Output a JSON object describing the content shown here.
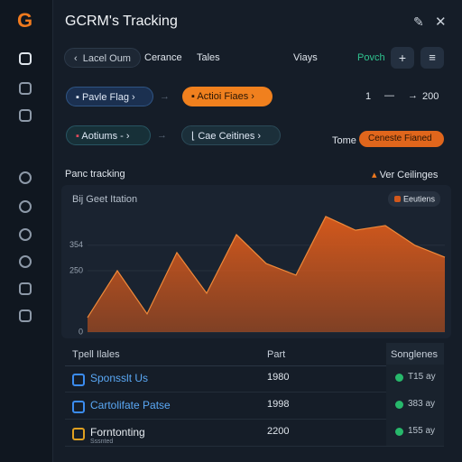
{
  "header": {
    "logo": "G",
    "title": "GCRM's Tracking"
  },
  "toolbar": {
    "back": "Lacel Oum",
    "tabs": [
      "Cerance",
      "Tales",
      "Viays"
    ],
    "action": "Povch"
  },
  "flow": {
    "row1": [
      "Pavle Flag",
      "Actioi Fiaes"
    ],
    "row2": [
      "Aotiums -",
      "Cae Ceitines"
    ],
    "pager_start": "1",
    "pager_end": "200",
    "tome": "Tome",
    "tome_button": "Ceneste Fianed"
  },
  "section": {
    "title": "Panc tracking",
    "filter": "Ver Ceilinges"
  },
  "chart_data": {
    "type": "area",
    "title": "Bij Geet Itation",
    "series": [
      {
        "name": "Eeutiens",
        "color": "#d2581c",
        "values": [
          59,
          250,
          74,
          324,
          158,
          397,
          279,
          232,
          471,
          415,
          434,
          353,
          305
        ]
      }
    ],
    "ylim": [
      0,
      500
    ],
    "yticks": [
      0,
      250,
      354
    ]
  },
  "table": {
    "headers": [
      "Tpell Ilales",
      "Part",
      "Songlenes"
    ],
    "rows": [
      {
        "name": "Sponsslt Us",
        "part": "1980",
        "status": "T15 ay"
      },
      {
        "name": "Cartolifate Patse",
        "part": "1998",
        "status": "383 ay"
      },
      {
        "name": "Forntonting",
        "note": "Sssnted",
        "part": "2200",
        "status": "155 ay"
      }
    ]
  }
}
